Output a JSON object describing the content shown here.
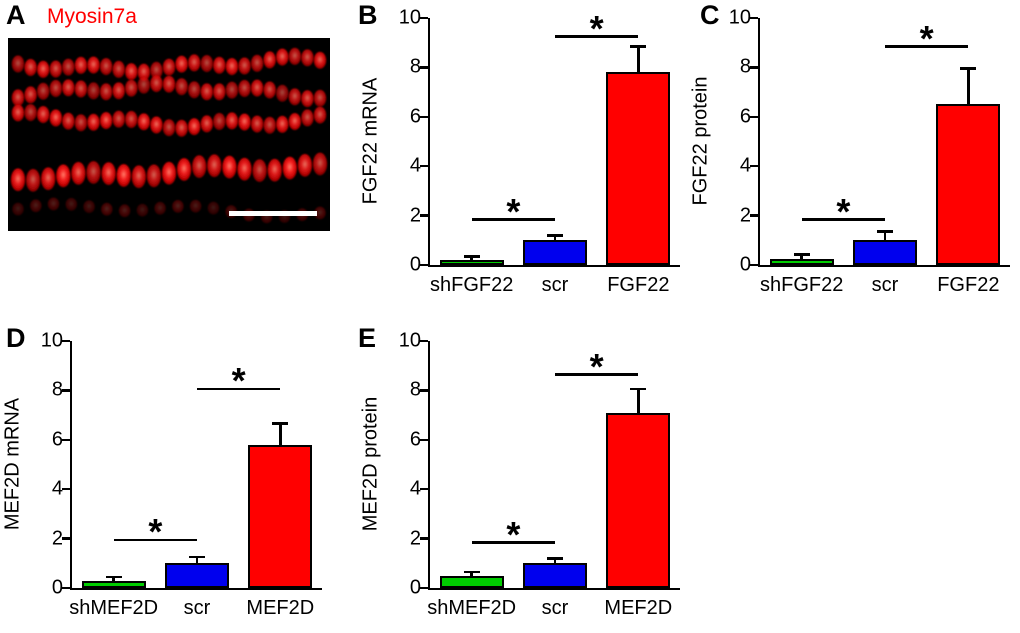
{
  "panel_a": {
    "letter": "A",
    "title": "Myosin7a",
    "title_color": "#ff0000",
    "background": "#000000",
    "scale_bar_color": "#ffffff"
  },
  "colors": {
    "bar_green": "#00cc00",
    "bar_blue": "#0000ee",
    "bar_red": "#ff0000",
    "axis": "#000000"
  },
  "chart_data": [
    {
      "type": "bar",
      "panel": "B",
      "title": "",
      "xlabel": "",
      "ylabel": "FGF22 mRNA",
      "categories": [
        "shFGF22",
        "scr",
        "FGF22"
      ],
      "values": [
        0.2,
        1.0,
        7.8
      ],
      "errors": [
        0.1,
        0.15,
        1.0
      ],
      "bar_colors": [
        "#00cc00",
        "#0000ee",
        "#ff0000"
      ],
      "ylim": [
        0,
        10
      ],
      "yticks": [
        0,
        2,
        4,
        6,
        8,
        10
      ],
      "grid": false,
      "legend": false,
      "significance": [
        {
          "between": [
            0,
            1
          ],
          "y": 1.8,
          "label": "*"
        },
        {
          "between": [
            1,
            2
          ],
          "y": 9.2,
          "label": "*"
        }
      ]
    },
    {
      "type": "bar",
      "panel": "C",
      "title": "",
      "xlabel": "",
      "ylabel": "FGF22 protein",
      "categories": [
        "shFGF22",
        "scr",
        "FGF22"
      ],
      "values": [
        0.25,
        1.0,
        6.5
      ],
      "errors": [
        0.12,
        0.3,
        1.4
      ],
      "bar_colors": [
        "#00cc00",
        "#0000ee",
        "#ff0000"
      ],
      "ylim": [
        0,
        10
      ],
      "yticks": [
        0,
        2,
        4,
        6,
        8,
        10
      ],
      "grid": false,
      "legend": false,
      "significance": [
        {
          "between": [
            0,
            1
          ],
          "y": 1.8,
          "label": "*"
        },
        {
          "between": [
            1,
            2
          ],
          "y": 8.8,
          "label": "*"
        }
      ]
    },
    {
      "type": "bar",
      "panel": "D",
      "title": "",
      "xlabel": "",
      "ylabel": "MEF2D mRNA",
      "categories": [
        "shMEF2D",
        "scr",
        "MEF2D"
      ],
      "values": [
        0.3,
        1.0,
        5.8
      ],
      "errors": [
        0.1,
        0.2,
        0.8
      ],
      "bar_colors": [
        "#00cc00",
        "#0000ee",
        "#ff0000"
      ],
      "ylim": [
        0,
        10
      ],
      "yticks": [
        0,
        2,
        4,
        6,
        8,
        10
      ],
      "grid": false,
      "legend": false,
      "significance": [
        {
          "between": [
            0,
            1
          ],
          "y": 1.9,
          "label": "*"
        },
        {
          "between": [
            1,
            2
          ],
          "y": 8.0,
          "label": "*"
        }
      ]
    },
    {
      "type": "bar",
      "panel": "E",
      "title": "",
      "xlabel": "",
      "ylabel": "MEF2D protein",
      "categories": [
        "shMEF2D",
        "scr",
        "MEF2D"
      ],
      "values": [
        0.5,
        1.0,
        7.1
      ],
      "errors": [
        0.1,
        0.15,
        0.9
      ],
      "bar_colors": [
        "#00cc00",
        "#0000ee",
        "#ff0000"
      ],
      "ylim": [
        0,
        10
      ],
      "yticks": [
        0,
        2,
        4,
        6,
        8,
        10
      ],
      "grid": false,
      "legend": false,
      "significance": [
        {
          "between": [
            0,
            1
          ],
          "y": 1.8,
          "label": "*"
        },
        {
          "between": [
            1,
            2
          ],
          "y": 8.6,
          "label": "*"
        }
      ]
    }
  ]
}
